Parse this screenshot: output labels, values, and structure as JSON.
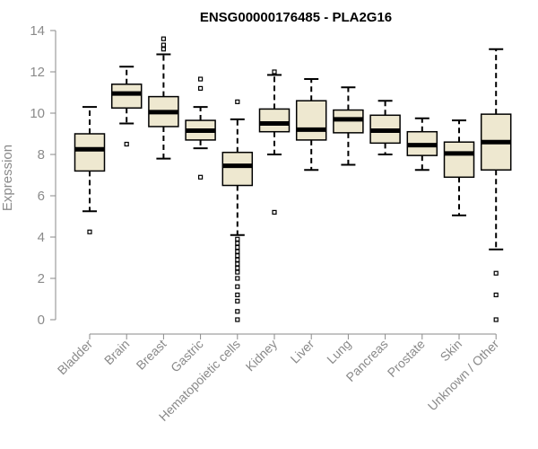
{
  "chart_data": {
    "type": "boxplot",
    "title": "ENSG00000176485 - PLA2G16",
    "xlabel": "",
    "ylabel": "Expression",
    "ylim": [
      0,
      14
    ],
    "yticks": [
      "0",
      "2",
      "4",
      "6",
      "8",
      "10",
      "12",
      "14"
    ],
    "box_color": "#eee8d0",
    "categories": [
      "Bladder",
      "Brain",
      "Breast",
      "Gastric",
      "Hematopoietic cells",
      "Kidney",
      "Liver",
      "Lung",
      "Pancreas",
      "Prostate",
      "Skin",
      "Unknown / Other"
    ],
    "boxes": [
      {
        "q1": 7.2,
        "median": 8.25,
        "q3": 9.0,
        "whisker_low": 5.25,
        "whisker_high": 10.3,
        "outliers": [
          4.25
        ]
      },
      {
        "q1": 10.25,
        "median": 10.95,
        "q3": 11.4,
        "whisker_low": 9.5,
        "whisker_high": 12.25,
        "outliers": [
          8.5
        ]
      },
      {
        "q1": 9.35,
        "median": 10.05,
        "q3": 10.8,
        "whisker_low": 7.8,
        "whisker_high": 12.85,
        "outliers": [
          13.1,
          13.3,
          13.6
        ]
      },
      {
        "q1": 8.7,
        "median": 9.15,
        "q3": 9.65,
        "whisker_low": 8.3,
        "whisker_high": 10.3,
        "outliers": [
          6.9,
          11.2,
          11.65
        ]
      },
      {
        "q1": 6.5,
        "median": 7.45,
        "q3": 8.1,
        "whisker_low": 4.1,
        "whisker_high": 9.7,
        "outliers": [
          10.55,
          0.0,
          0.4,
          0.9,
          1.2,
          1.6,
          2.0,
          2.3,
          2.5,
          2.7,
          2.9,
          3.1,
          3.3,
          3.5,
          3.7,
          3.9
        ]
      },
      {
        "q1": 9.1,
        "median": 9.5,
        "q3": 10.2,
        "whisker_low": 8.0,
        "whisker_high": 11.85,
        "outliers": [
          5.2,
          12.0
        ]
      },
      {
        "q1": 8.7,
        "median": 9.2,
        "q3": 10.6,
        "whisker_low": 7.25,
        "whisker_high": 11.65,
        "outliers": []
      },
      {
        "q1": 9.05,
        "median": 9.7,
        "q3": 10.15,
        "whisker_low": 7.5,
        "whisker_high": 11.25,
        "outliers": []
      },
      {
        "q1": 8.55,
        "median": 9.15,
        "q3": 9.9,
        "whisker_low": 8.0,
        "whisker_high": 10.6,
        "outliers": []
      },
      {
        "q1": 7.95,
        "median": 8.45,
        "q3": 9.1,
        "whisker_low": 7.25,
        "whisker_high": 9.75,
        "outliers": []
      },
      {
        "q1": 6.9,
        "median": 8.05,
        "q3": 8.6,
        "whisker_low": 5.05,
        "whisker_high": 9.65,
        "outliers": []
      },
      {
        "q1": 7.25,
        "median": 8.6,
        "q3": 9.95,
        "whisker_low": 3.4,
        "whisker_high": 13.1,
        "outliers": [
          0.0,
          1.2,
          2.25
        ]
      }
    ]
  }
}
